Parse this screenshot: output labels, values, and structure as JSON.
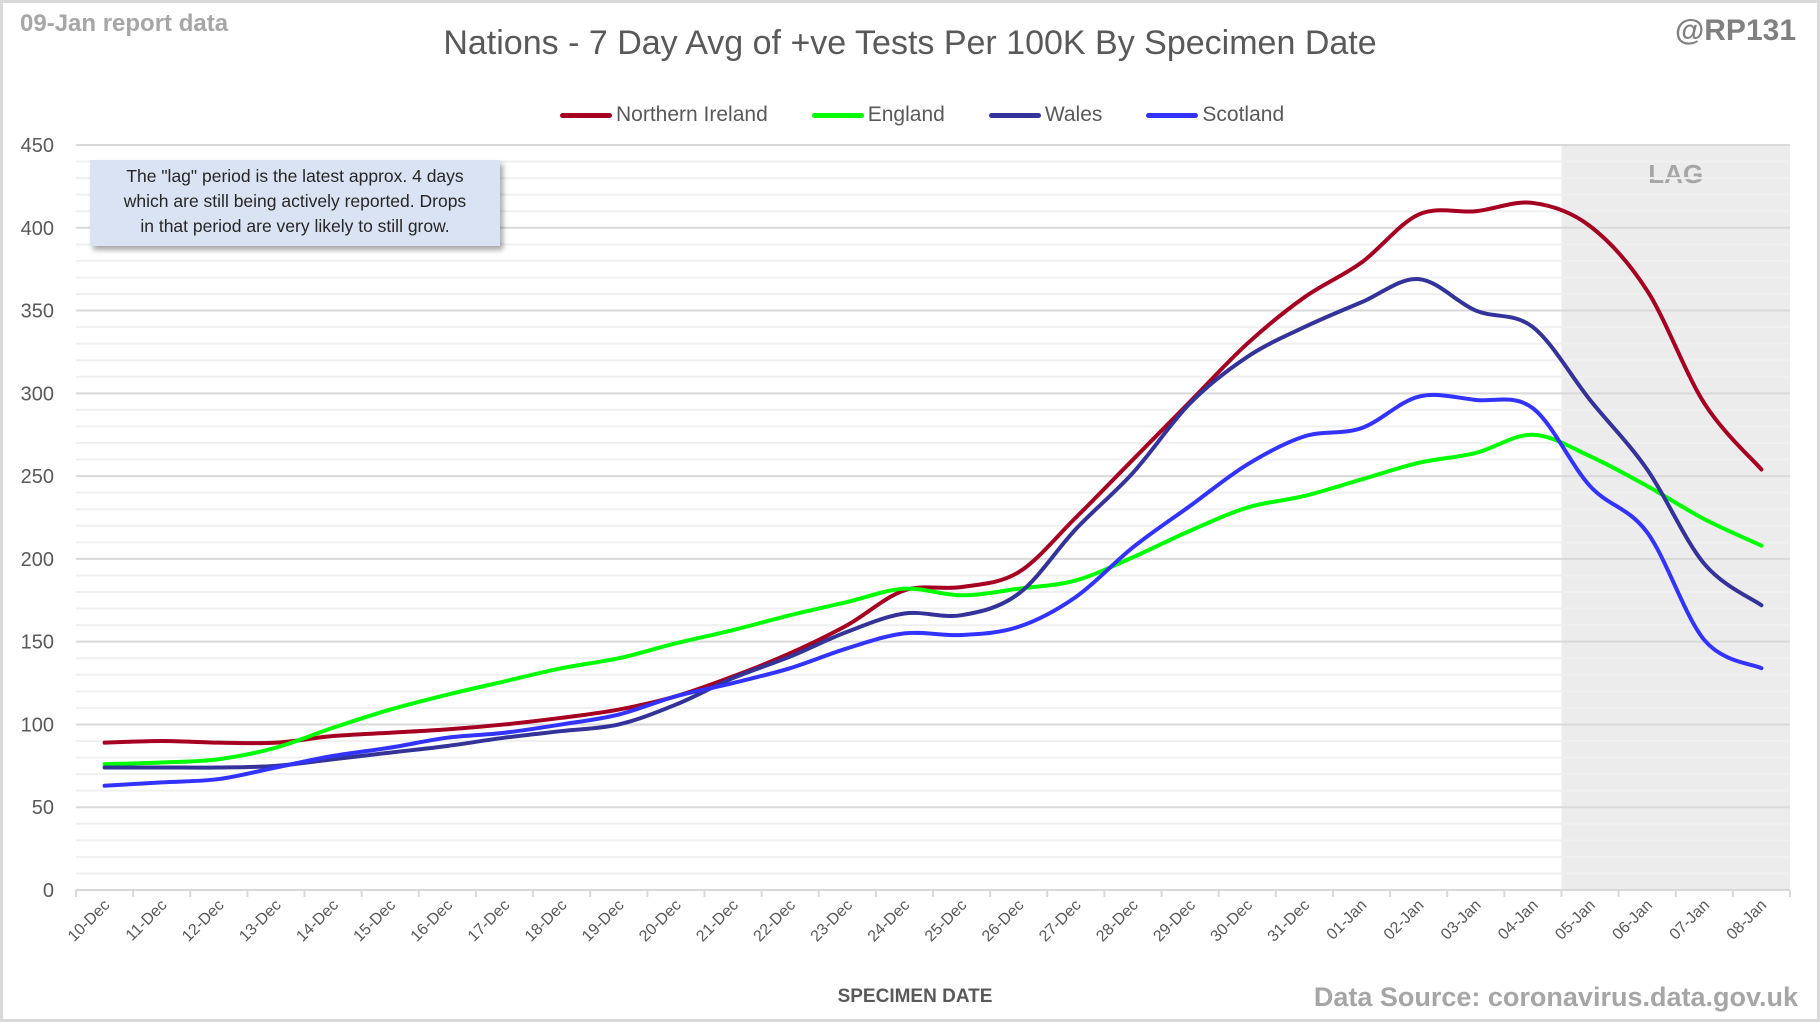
{
  "header": {
    "report_date": "09-Jan report data",
    "handle": "@RP131",
    "source": "Data Source: coronavirus.data.gov.uk"
  },
  "note": {
    "lines": [
      "The \"lag\" period is the latest approx. 4 days",
      "which are still being actively reported.  Drops",
      "in that period are very likely to still grow."
    ]
  },
  "chart_data": {
    "type": "line",
    "title": "Nations - 7 Day Avg of +ve Tests Per 100K By Specimen Date",
    "xlabel": "SPECIMEN DATE",
    "ylabel": "",
    "ylim": [
      0,
      450
    ],
    "yticks": [
      0,
      50,
      100,
      150,
      200,
      250,
      300,
      350,
      400,
      450
    ],
    "minor_grid_step": 10,
    "grid": true,
    "legend_position": "top",
    "lag_label": "LAG",
    "lag_categories": [
      "05-Jan",
      "06-Jan",
      "07-Jan",
      "08-Jan"
    ],
    "categories": [
      "10-Dec",
      "11-Dec",
      "12-Dec",
      "13-Dec",
      "14-Dec",
      "15-Dec",
      "16-Dec",
      "17-Dec",
      "18-Dec",
      "19-Dec",
      "20-Dec",
      "21-Dec",
      "22-Dec",
      "23-Dec",
      "24-Dec",
      "25-Dec",
      "26-Dec",
      "27-Dec",
      "28-Dec",
      "29-Dec",
      "30-Dec",
      "31-Dec",
      "01-Jan",
      "02-Jan",
      "03-Jan",
      "04-Jan",
      "05-Jan",
      "06-Jan",
      "07-Jan",
      "08-Jan"
    ],
    "series": [
      {
        "name": "Northern Ireland",
        "color": "#a50021",
        "values": [
          89,
          90,
          89,
          89,
          93,
          95,
          97,
          100,
          104,
          109,
          117,
          129,
          143,
          160,
          181,
          183,
          192,
          225,
          260,
          295,
          330,
          358,
          379,
          408,
          410,
          415,
          401,
          362,
          294,
          254
        ]
      },
      {
        "name": "England",
        "color": "#00ff00",
        "values": [
          76,
          77,
          79,
          86,
          98,
          109,
          118,
          126,
          134,
          140,
          149,
          157,
          166,
          174,
          182,
          178,
          182,
          187,
          201,
          217,
          231,
          238,
          248,
          258,
          264,
          275,
          262,
          244,
          224,
          208
        ]
      },
      {
        "name": "Wales",
        "color": "#333399",
        "values": [
          74,
          74,
          74,
          75,
          79,
          83,
          87,
          92,
          96,
          100,
          112,
          128,
          141,
          156,
          167,
          166,
          179,
          218,
          252,
          294,
          322,
          340,
          355,
          369,
          350,
          340,
          296,
          254,
          197,
          172
        ]
      },
      {
        "name": "Scotland",
        "color": "#3333ff",
        "values": [
          63,
          65,
          67,
          74,
          81,
          86,
          92,
          95,
          100,
          106,
          117,
          125,
          134,
          146,
          155,
          154,
          159,
          177,
          207,
          232,
          257,
          274,
          279,
          298,
          296,
          291,
          244,
          216,
          151,
          134
        ]
      }
    ]
  }
}
